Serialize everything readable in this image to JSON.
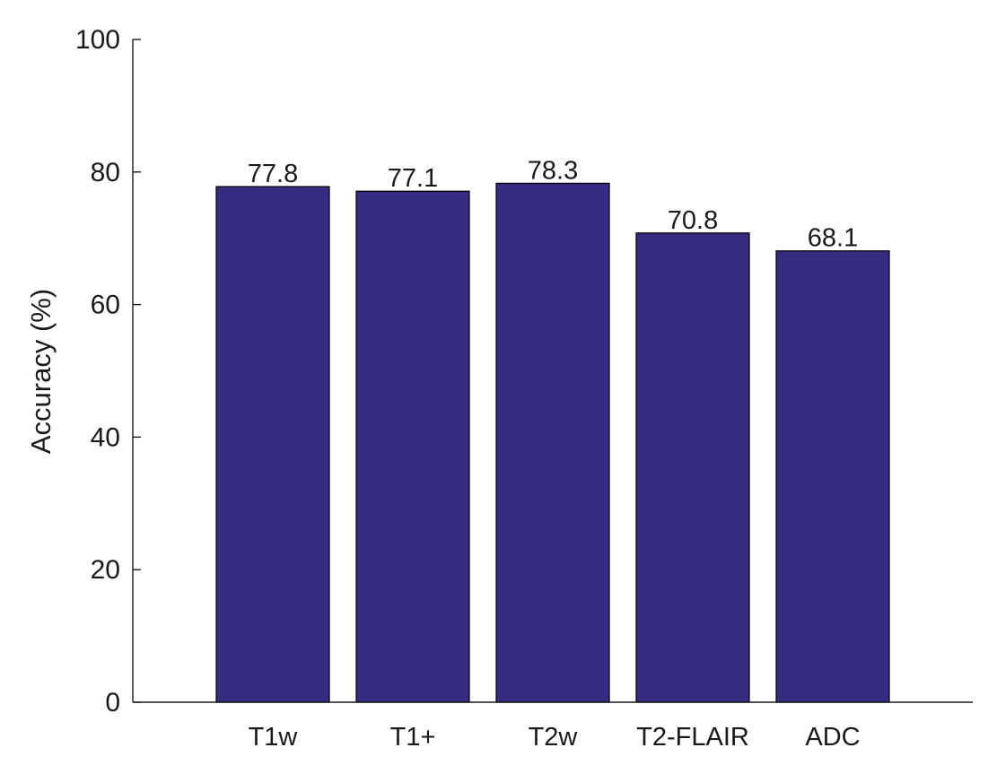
{
  "chart_data": {
    "type": "bar",
    "categories": [
      "T1w",
      "T1+",
      "T2w",
      "T2-FLAIR",
      "ADC"
    ],
    "values": [
      77.8,
      77.1,
      78.3,
      70.8,
      68.1
    ],
    "data_labels": [
      "77.8",
      "77.1",
      "78.3",
      "70.8",
      "68.1"
    ],
    "title": "",
    "xlabel": "",
    "ylabel": "Accuracy (%)",
    "ylim": [
      0,
      100
    ],
    "yticks": [
      0,
      20,
      40,
      60,
      80,
      100
    ],
    "ytick_labels": [
      "0",
      "20",
      "40",
      "60",
      "80",
      "100"
    ],
    "grid": false,
    "legend": "none",
    "bar_color": "#352b80",
    "bar_edge_color": "#000000"
  }
}
